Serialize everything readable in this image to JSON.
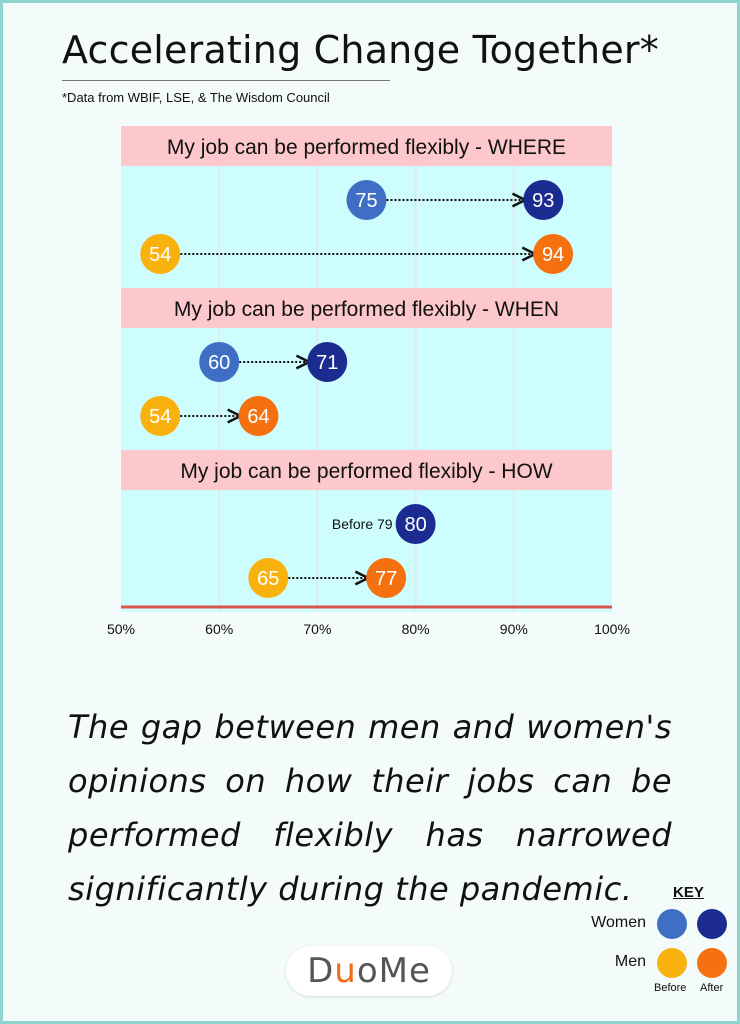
{
  "header": {
    "title": "Accelerating Change Together*",
    "subtitle": "*Data from WBIF, LSE, & The Wisdom Council"
  },
  "colors": {
    "women_before": "#3f6fc4",
    "women_after": "#1b2b8f",
    "men_before": "#f9b10e",
    "men_after": "#f5700f",
    "panel_header": "#fdc8cc",
    "panel_body": "#cdfdfd",
    "axis_line": "#d9534f"
  },
  "chart_data": {
    "type": "dot-plot",
    "xlim": [
      50,
      100
    ],
    "x_ticks": [
      "50%",
      "60%",
      "70%",
      "80%",
      "90%",
      "100%"
    ],
    "series_meaning": {
      "rows": [
        "Women",
        "Men"
      ],
      "points": [
        "Before",
        "After"
      ]
    },
    "panels": [
      {
        "title": "My job can be performed flexibly - WHERE",
        "rows": [
          {
            "group": "Women",
            "before": 75,
            "after": 93,
            "before_label": "75",
            "after_label": "93"
          },
          {
            "group": "Men",
            "before": 54,
            "after": 94,
            "before_label": "54",
            "after_label": "94"
          }
        ]
      },
      {
        "title": "My job can be performed flexibly - WHEN",
        "rows": [
          {
            "group": "Women",
            "before": 60,
            "after": 71,
            "before_label": "60",
            "after_label": "71"
          },
          {
            "group": "Men",
            "before": 54,
            "after": 64,
            "before_label": "54",
            "after_label": "64"
          }
        ]
      },
      {
        "title": "My job can be performed flexibly - HOW",
        "rows": [
          {
            "group": "Women",
            "before": 79,
            "after": 80,
            "before_label": "Before 79",
            "after_label": "80",
            "before_as_text": true
          },
          {
            "group": "Men",
            "before": 65,
            "after": 77,
            "before_label": "65",
            "after_label": "77"
          }
        ]
      }
    ]
  },
  "caption": "The gap between men and women's opinions on how their jobs can be performed flexibly has narrowed significantly during the pandemic.",
  "key": {
    "title": "KEY",
    "women_label": "Women",
    "men_label": "Men",
    "before_label": "Before",
    "after_label": "After"
  },
  "logo": {
    "text_1": "D",
    "text_u": "u",
    "text_2": "oMe"
  }
}
